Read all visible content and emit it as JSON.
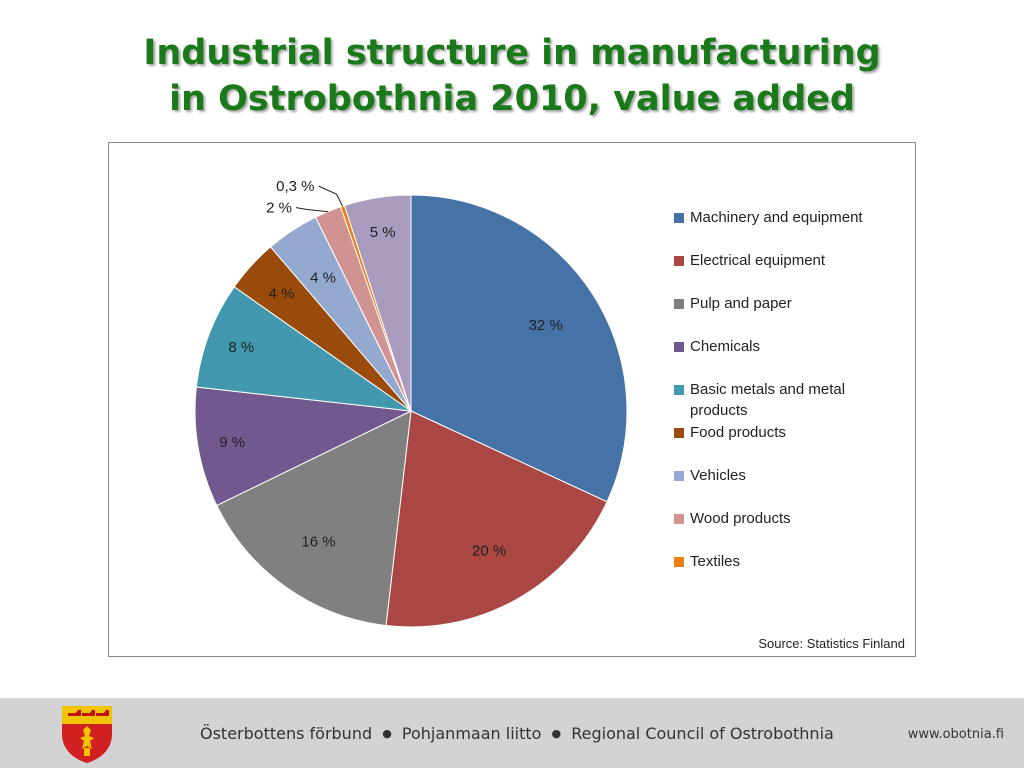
{
  "title": {
    "line1": "Industrial structure in manufacturing",
    "line2": "in Ostrobothnia 2010, value added"
  },
  "chart_data": {
    "type": "pie",
    "start_angle": "12 o'clock",
    "direction": "clockwise",
    "legend_position": "right",
    "categories": [
      "Machinery and equipment",
      "Electrical equipment",
      "Pulp and paper",
      "Chemicals",
      "Basic metals and metal products",
      "Food products",
      "Vehicles",
      "Wood products",
      "Textiles",
      ""
    ],
    "values": [
      32,
      20,
      16,
      9,
      8,
      4,
      4,
      2,
      0.3,
      5
    ],
    "labels": [
      "32 %",
      "20 %",
      "16 %",
      "9 %",
      "8 %",
      "4 %",
      "4 %",
      "2 %",
      "0,3 %",
      "5 %"
    ],
    "colors": [
      "#4572A7",
      "#AA4643",
      "#808080",
      "#71588F",
      "#4198AF",
      "#9A4A0A",
      "#93A9CF",
      "#D19392",
      "#F07D10",
      "#A99BBD"
    ],
    "source": "Source: Statistics Finland"
  },
  "legend": [
    {
      "label": "Machinery and equipment",
      "color": "#4572A7"
    },
    {
      "label": "Electrical equipment",
      "color": "#AA4643"
    },
    {
      "label": "Pulp and paper",
      "color": "#808080"
    },
    {
      "label": "Chemicals",
      "color": "#71588F"
    },
    {
      "label": "Basic metals and metal products",
      "color": "#4198AF"
    },
    {
      "label": "Food products",
      "color": "#9A4A0A"
    },
    {
      "label": "Vehicles",
      "color": "#93A9CF"
    },
    {
      "label": "Wood products",
      "color": "#D19392"
    },
    {
      "label": "Textiles",
      "color": "#F07D10"
    }
  ],
  "footer": {
    "org_sv": "Österbottens förbund",
    "org_fi": "Pohjanmaan liitto",
    "org_en": "Regional Council of Ostrobothnia",
    "separator": "●",
    "url": "www.obotnia.fi",
    "logo_icon": "ostrobothnia-coat-of-arms-icon"
  }
}
